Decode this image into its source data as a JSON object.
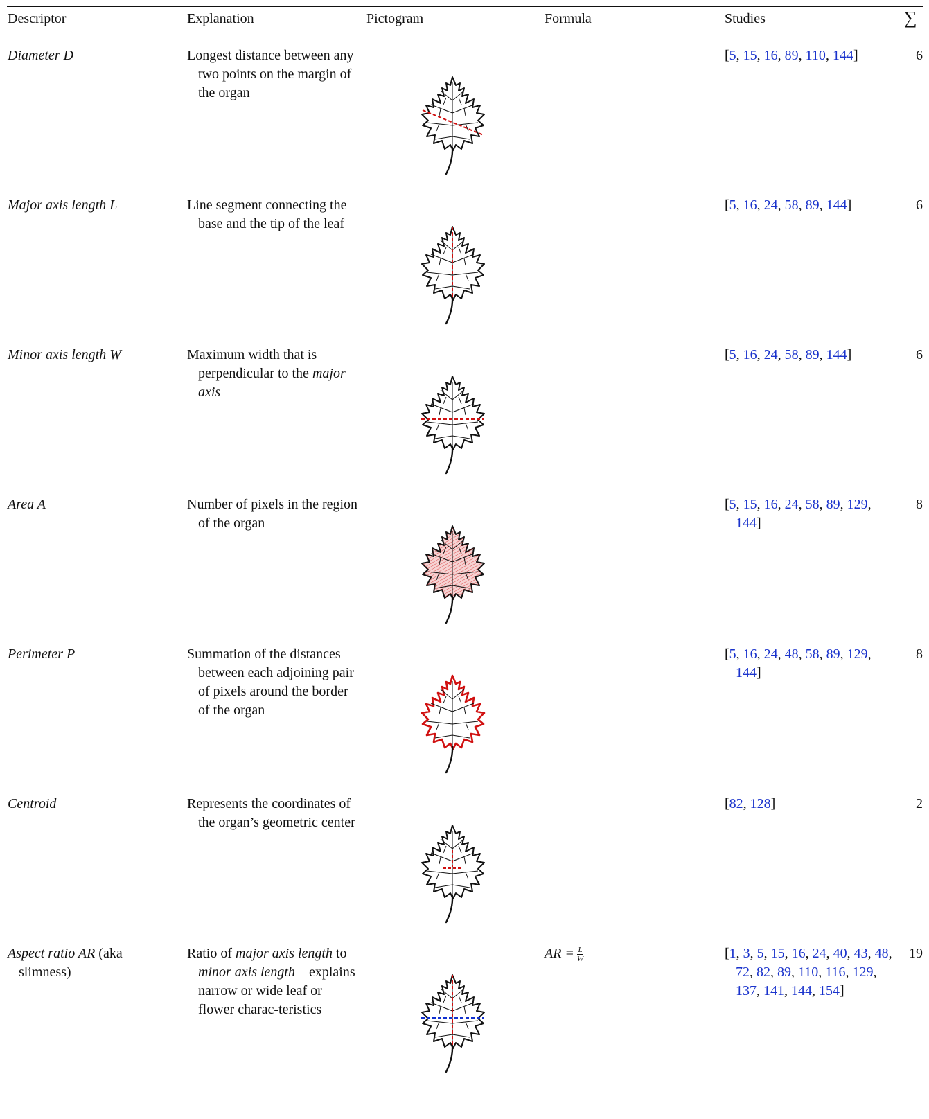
{
  "headers": {
    "descriptor": "Descriptor",
    "explanation": "Explanation",
    "pictogram": "Pictogram",
    "formula": "Formula",
    "studies": "Studies",
    "sum": "∑"
  },
  "colors": {
    "link": "#1a33cc",
    "highlight_red": "#d01010",
    "highlight_blue": "#1030d0"
  },
  "rows": [
    {
      "descriptor_parts": [
        {
          "text": "Diameter D",
          "style": "italic"
        }
      ],
      "explanation_parts": [
        {
          "text": "Longest distance between any two points on the margin of the organ",
          "style": "normal"
        }
      ],
      "pictogram": "leaf-diameter-icon",
      "formula": null,
      "studies": [
        "5",
        "15",
        "16",
        "89",
        "110",
        "144"
      ],
      "count": "6"
    },
    {
      "descriptor_parts": [
        {
          "text": "Major axis length L",
          "style": "italic"
        }
      ],
      "explanation_parts": [
        {
          "text": "Line segment connecting the base and the tip of the leaf",
          "style": "normal"
        }
      ],
      "pictogram": "leaf-major-axis-icon",
      "formula": null,
      "studies": [
        "5",
        "16",
        "24",
        "58",
        "89",
        "144"
      ],
      "count": "6"
    },
    {
      "descriptor_parts": [
        {
          "text": "Minor axis length W",
          "style": "italic"
        }
      ],
      "explanation_parts": [
        {
          "text": "Maximum width that is perpendicular to the ",
          "style": "normal"
        },
        {
          "text": "major axis",
          "style": "italic"
        }
      ],
      "pictogram": "leaf-minor-axis-icon",
      "formula": null,
      "studies": [
        "5",
        "16",
        "24",
        "58",
        "89",
        "144"
      ],
      "count": "6"
    },
    {
      "descriptor_parts": [
        {
          "text": "Area A",
          "style": "italic"
        }
      ],
      "explanation_parts": [
        {
          "text": "Number of pixels in the region of the organ",
          "style": "normal"
        }
      ],
      "pictogram": "leaf-area-icon",
      "formula": null,
      "studies": [
        "5",
        "15",
        "16",
        "24",
        "58",
        "89",
        "129",
        "144"
      ],
      "count": "8"
    },
    {
      "descriptor_parts": [
        {
          "text": "Perimeter P",
          "style": "italic"
        }
      ],
      "explanation_parts": [
        {
          "text": "Summation of the distances between each adjoining pair of pixels around the border of the organ",
          "style": "normal"
        }
      ],
      "pictogram": "leaf-perimeter-icon",
      "formula": null,
      "studies": [
        "5",
        "16",
        "24",
        "48",
        "58",
        "89",
        "129",
        "144"
      ],
      "count": "8"
    },
    {
      "descriptor_parts": [
        {
          "text": "Centroid",
          "style": "italic"
        }
      ],
      "explanation_parts": [
        {
          "text": "Represents the coordinates of the organ’s geometric center",
          "style": "normal"
        }
      ],
      "pictogram": "leaf-centroid-icon",
      "formula": null,
      "studies": [
        "82",
        "128"
      ],
      "count": "2"
    },
    {
      "descriptor_parts": [
        {
          "text": "Aspect ratio AR",
          "style": "italic"
        },
        {
          "text": " (aka slimness)",
          "style": "normal"
        }
      ],
      "explanation_parts": [
        {
          "text": "Ratio of ",
          "style": "normal"
        },
        {
          "text": "major axis length",
          "style": "italic"
        },
        {
          "text": " to ",
          "style": "normal"
        },
        {
          "text": "minor axis length",
          "style": "italic"
        },
        {
          "text": "—explains narrow or wide leaf or flower charac-teristics",
          "style": "normal"
        }
      ],
      "pictogram": "leaf-aspect-ratio-icon",
      "formula": {
        "lhs": "AR =",
        "num": "L",
        "den": "W"
      },
      "studies": [
        "1",
        "3",
        "5",
        "15",
        "16",
        "24",
        "40",
        "43",
        "48",
        "72",
        "82",
        "89",
        "110",
        "116",
        "129",
        "137",
        "141",
        "144",
        "154"
      ],
      "count": "19"
    }
  ]
}
